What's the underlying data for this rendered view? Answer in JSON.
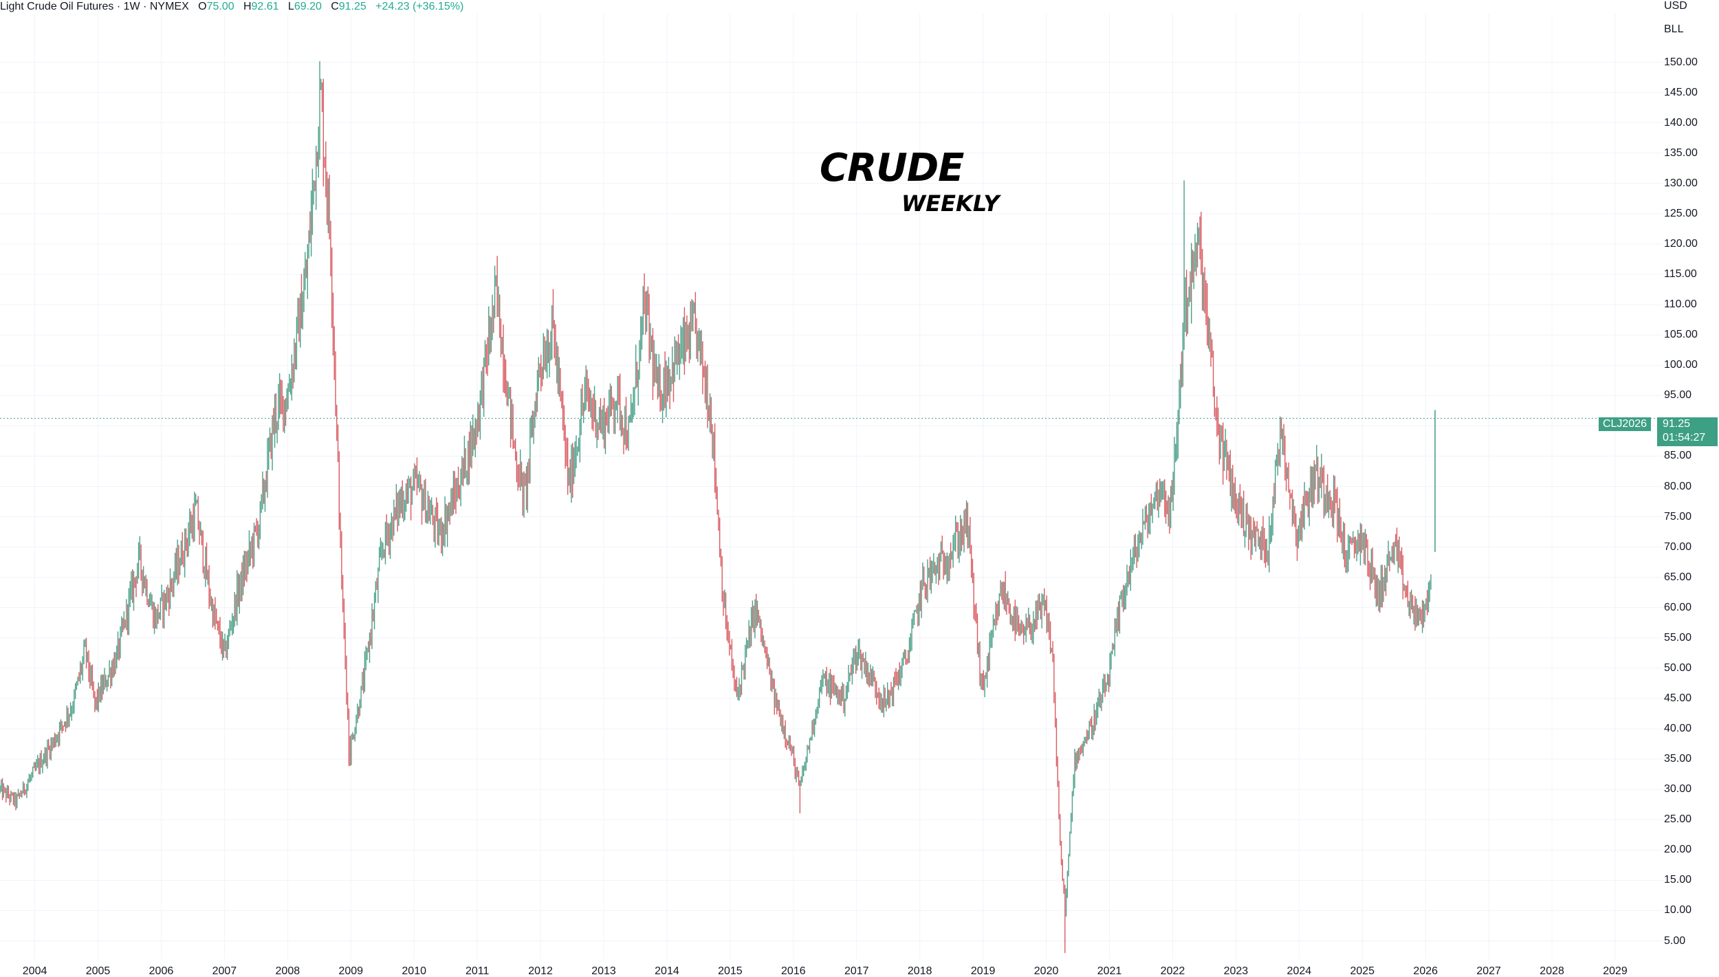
{
  "header": {
    "symbol_name": "Light Crude Oil Futures",
    "interval": "1W",
    "exchange": "NYMEX",
    "open_label": "O",
    "open_value": "75.00",
    "high_label": "H",
    "high_value": "92.61",
    "low_label": "L",
    "low_value": "69.20",
    "close_label": "C",
    "close_value": "91.25",
    "change": "+24.23 (+36.15%)"
  },
  "price_scale": {
    "currency": "USD",
    "unit": "BLL"
  },
  "last_price": {
    "ticker": "CLJ2026",
    "value": "91.25",
    "countdown": "01:54:27",
    "price": 91.25
  },
  "annotations": {
    "title": "CRUDE",
    "subtitle": "WEEKLY"
  },
  "colors": {
    "up": "#22ab94",
    "down": "#f23645",
    "up_candle": "#4a9e87",
    "down_candle": "#d9595f",
    "grid": "#f0f3fa",
    "price_line": "#3d9f84"
  },
  "chart_data": {
    "type": "candlestick",
    "title": "",
    "xlabel": "",
    "ylabel": "",
    "x_range": [
      2003.45,
      2029.75
    ],
    "ylim": [
      2,
      158
    ],
    "grid": true,
    "x_ticks": [
      "2004",
      "2005",
      "2006",
      "2007",
      "2008",
      "2009",
      "2010",
      "2011",
      "2012",
      "2013",
      "2014",
      "2015",
      "2016",
      "2017",
      "2018",
      "2019",
      "2020",
      "2021",
      "2022",
      "2023",
      "2024",
      "2025",
      "2026",
      "2027",
      "2028",
      "2029"
    ],
    "y_ticks": [
      "5.00",
      "10.00",
      "15.00",
      "20.00",
      "25.00",
      "30.00",
      "35.00",
      "40.00",
      "45.00",
      "50.00",
      "55.00",
      "60.00",
      "65.00",
      "70.00",
      "75.00",
      "80.00",
      "85.00",
      "90.00",
      "95.00",
      "100.00",
      "105.00",
      "110.00",
      "115.00",
      "120.00",
      "125.00",
      "130.00",
      "135.00",
      "140.00",
      "145.00",
      "150.00"
    ],
    "price_path": [
      [
        2003.45,
        30
      ],
      [
        2003.7,
        28
      ],
      [
        2004.0,
        33
      ],
      [
        2004.3,
        38
      ],
      [
        2004.6,
        44
      ],
      [
        2004.8,
        53
      ],
      [
        2004.95,
        44
      ],
      [
        2005.3,
        52
      ],
      [
        2005.65,
        68
      ],
      [
        2005.9,
        58
      ],
      [
        2006.1,
        62
      ],
      [
        2006.55,
        76
      ],
      [
        2006.8,
        60
      ],
      [
        2007.0,
        52
      ],
      [
        2007.2,
        62
      ],
      [
        2007.55,
        74
      ],
      [
        2007.8,
        92
      ],
      [
        2008.0,
        95
      ],
      [
        2008.3,
        115
      ],
      [
        2008.52,
        145
      ],
      [
        2008.68,
        120
      ],
      [
        2008.85,
        65
      ],
      [
        2008.98,
        36
      ],
      [
        2009.2,
        48
      ],
      [
        2009.5,
        70
      ],
      [
        2009.8,
        78
      ],
      [
        2010.05,
        80
      ],
      [
        2010.4,
        72
      ],
      [
        2010.7,
        80
      ],
      [
        2010.98,
        90
      ],
      [
        2011.3,
        112
      ],
      [
        2011.6,
        85
      ],
      [
        2011.75,
        78
      ],
      [
        2011.98,
        100
      ],
      [
        2012.2,
        106
      ],
      [
        2012.45,
        80
      ],
      [
        2012.7,
        95
      ],
      [
        2012.98,
        90
      ],
      [
        2013.2,
        95
      ],
      [
        2013.4,
        88
      ],
      [
        2013.65,
        110
      ],
      [
        2013.85,
        95
      ],
      [
        2014.1,
        100
      ],
      [
        2014.45,
        106
      ],
      [
        2014.7,
        92
      ],
      [
        2014.9,
        60
      ],
      [
        2015.1,
        45
      ],
      [
        2015.4,
        60
      ],
      [
        2015.7,
        45
      ],
      [
        2015.95,
        37
      ],
      [
        2016.1,
        30
      ],
      [
        2016.45,
        48
      ],
      [
        2016.8,
        45
      ],
      [
        2017.0,
        53
      ],
      [
        2017.45,
        44
      ],
      [
        2017.8,
        52
      ],
      [
        2018.05,
        64
      ],
      [
        2018.4,
        68
      ],
      [
        2018.75,
        74
      ],
      [
        2018.98,
        46
      ],
      [
        2019.3,
        63
      ],
      [
        2019.6,
        55
      ],
      [
        2019.98,
        60
      ],
      [
        2020.1,
        52
      ],
      [
        2020.22,
        20
      ],
      [
        2020.3,
        10
      ],
      [
        2020.45,
        35
      ],
      [
        2020.7,
        40
      ],
      [
        2020.98,
        48
      ],
      [
        2021.2,
        62
      ],
      [
        2021.5,
        72
      ],
      [
        2021.8,
        80
      ],
      [
        2021.98,
        76
      ],
      [
        2022.2,
        110
      ],
      [
        2022.42,
        120
      ],
      [
        2022.7,
        90
      ],
      [
        2022.98,
        78
      ],
      [
        2023.25,
        72
      ],
      [
        2023.5,
        70
      ],
      [
        2023.72,
        90
      ],
      [
        2023.95,
        72
      ],
      [
        2024.25,
        82
      ],
      [
        2024.55,
        78
      ],
      [
        2024.75,
        68
      ],
      [
        2024.98,
        72
      ],
      [
        2025.25,
        62
      ],
      [
        2025.5,
        70
      ],
      [
        2025.75,
        60
      ],
      [
        2025.98,
        58
      ],
      [
        2026.1,
        66
      ],
      [
        2026.15,
        91.25
      ]
    ],
    "key_extremes": {
      "high_2008": 147.27,
      "low_2008": 33.87,
      "high_2011": 114.83,
      "low_2016": 26.05,
      "low_2020": 3.0,
      "high_2022": 130.5,
      "last": 91.25
    }
  }
}
